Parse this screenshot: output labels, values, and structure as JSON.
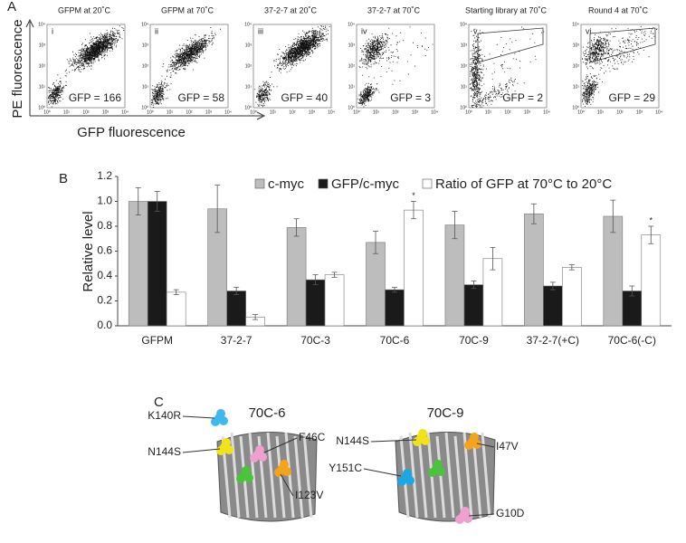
{
  "panel_a": {
    "letter": "A",
    "y_label": "PE fluorescence",
    "x_label": "GFP fluorescence",
    "ticks": [
      "10⁰",
      "10¹",
      "10²",
      "10³",
      "10⁴"
    ],
    "plots": [
      {
        "title": "GFPM at 20˚C",
        "numeral": "i",
        "gfp": "GFP = 166"
      },
      {
        "title": "GFPM at 70˚C",
        "numeral": "ii",
        "gfp": "GFP = 58"
      },
      {
        "title": "37-2-7 at 20˚C",
        "numeral": "iii",
        "gfp": "GFP = 40"
      },
      {
        "title": "37-2-7 at 70˚C",
        "numeral": "iv",
        "gfp": "GFP = 3"
      },
      {
        "title": "Starting library at 70˚C",
        "numeral": "v",
        "gfp": "GFP = 2"
      },
      {
        "title": "Round 4 at 70˚C",
        "numeral": "vi",
        "gfp": "GFP = 29"
      }
    ]
  },
  "chart_data": {
    "type": "bar",
    "panel_letter": "B",
    "y_label": "Relative level",
    "categories": [
      "GFPM",
      "37-2-7",
      "70C-3",
      "70C-6",
      "70C-9",
      "37-2-7(+C)",
      "70C-6(-C)"
    ],
    "series": [
      {
        "name": "c-myc",
        "color": "#bdbdbd",
        "values": [
          1.0,
          0.94,
          0.79,
          0.67,
          0.81,
          0.9,
          0.88
        ],
        "errors": [
          0.11,
          0.19,
          0.07,
          0.09,
          0.11,
          0.08,
          0.13
        ]
      },
      {
        "name": "GFP/c-myc",
        "color": "#1a1a1a",
        "values": [
          1.0,
          0.28,
          0.37,
          0.29,
          0.33,
          0.32,
          0.28
        ],
        "errors": [
          0.08,
          0.03,
          0.04,
          0.02,
          0.03,
          0.03,
          0.04
        ]
      },
      {
        "name": "Ratio of GFP at 70°C to 20°C",
        "color": "#ffffff",
        "values": [
          0.27,
          0.07,
          0.41,
          0.93,
          0.54,
          0.47,
          0.73
        ],
        "errors": [
          0.02,
          0.02,
          0.02,
          0.07,
          0.09,
          0.02,
          0.07
        ],
        "markers": [
          null,
          null,
          null,
          "*",
          null,
          null,
          "*"
        ]
      }
    ],
    "ylim": [
      0,
      1.2
    ],
    "yticks": [
      {
        "value": 0,
        "label": "0.0"
      },
      {
        "value": 0.2,
        "label": "0.2"
      },
      {
        "value": 0.4,
        "label": "0.4"
      },
      {
        "value": 0.6,
        "label": "0.6"
      },
      {
        "value": 0.8,
        "label": "0.8"
      },
      {
        "value": 1,
        "label": "1.0"
      },
      {
        "value": 1.2,
        "label": "1.2"
      }
    ],
    "grid": false
  },
  "panel_c": {
    "letter": "C",
    "structures": [
      {
        "title": "70C-6",
        "labels": [
          "K140R",
          "N144S",
          "F46C",
          "I123V"
        ]
      },
      {
        "title": "70C-9",
        "labels": [
          "N144S",
          "I47V",
          "Y151C",
          "G10D"
        ]
      }
    ]
  }
}
